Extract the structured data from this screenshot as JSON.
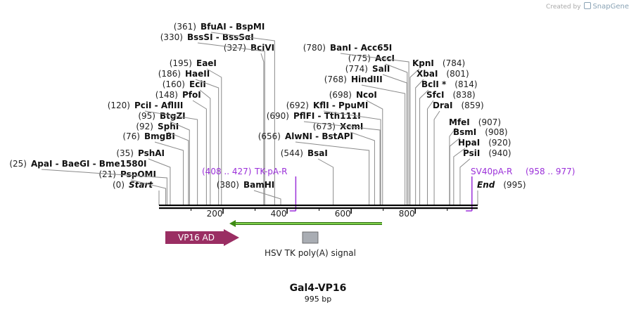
{
  "credit": {
    "prefix": "Created by",
    "brand": "SnapGene"
  },
  "plasmid": {
    "name": "Gal4-VP16",
    "length": "995 bp",
    "total_bp": 995
  },
  "ruler": {
    "ticks": [
      200,
      400,
      600,
      800
    ]
  },
  "sites": [
    {
      "pos": 0,
      "num": "(0)",
      "name": "Start",
      "style": "italic"
    },
    {
      "pos": 21,
      "num": "(21)",
      "name": "PspOMI"
    },
    {
      "pos": 25,
      "num": "(25)",
      "name": "ApaI  -  BaeGI  -  Bme1580I"
    },
    {
      "pos": 35,
      "num": "(35)",
      "name": "PshAI"
    },
    {
      "pos": 76,
      "num": "(76)",
      "name": "BmgBI"
    },
    {
      "pos": 92,
      "num": "(92)",
      "name": "SphI"
    },
    {
      "pos": 95,
      "num": "(95)",
      "name": "BtgZI"
    },
    {
      "pos": 120,
      "num": "(120)",
      "name": "PciI  -  AflIII"
    },
    {
      "pos": 148,
      "num": "(148)",
      "name": "PfoI"
    },
    {
      "pos": 160,
      "num": "(160)",
      "name": "EciI"
    },
    {
      "pos": 186,
      "num": "(186)",
      "name": "HaeII"
    },
    {
      "pos": 195,
      "num": "(195)",
      "name": "EaeI"
    },
    {
      "pos": 327,
      "num": "(327)",
      "name": "BciVI"
    },
    {
      "pos": 330,
      "num": "(330)",
      "name": "BssSI  -  BssSαI"
    },
    {
      "pos": 361,
      "num": "(361)",
      "name": "BfuAI  -  BspMI"
    },
    {
      "pos": 380,
      "num": "(380)",
      "name": "BamHI"
    },
    {
      "pos": 544,
      "num": "(544)",
      "name": "BsaI"
    },
    {
      "pos": 656,
      "num": "(656)",
      "name": "AlwNI  -  BstAPI"
    },
    {
      "pos": 673,
      "num": "(673)",
      "name": "XcmI"
    },
    {
      "pos": 690,
      "num": "(690)",
      "name": "PflFI  -  Tth111I"
    },
    {
      "pos": 692,
      "num": "(692)",
      "name": "KflI  -  PpuMI"
    },
    {
      "pos": 698,
      "num": "(698)",
      "name": "NcoI"
    },
    {
      "pos": 768,
      "num": "(768)",
      "name": "HindIII"
    },
    {
      "pos": 774,
      "num": "(774)",
      "name": "SalI"
    },
    {
      "pos": 775,
      "num": "(775)",
      "name": "AccI"
    },
    {
      "pos": 780,
      "num": "(780)",
      "name": "BanI  -  Acc65I"
    },
    {
      "pos": 784,
      "num": "(784)",
      "name": "KpnI"
    },
    {
      "pos": 801,
      "num": "(801)",
      "name": "XbaI"
    },
    {
      "pos": 814,
      "num": "(814)",
      "name": "BclI *"
    },
    {
      "pos": 838,
      "num": "(838)",
      "name": "SfcI"
    },
    {
      "pos": 859,
      "num": "(859)",
      "name": "DraI"
    },
    {
      "pos": 907,
      "num": "(907)",
      "name": "MfeI"
    },
    {
      "pos": 908,
      "num": "(908)",
      "name": "BsmI"
    },
    {
      "pos": 920,
      "num": "(920)",
      "name": "HpaI"
    },
    {
      "pos": 940,
      "num": "(940)",
      "name": "PsiI"
    },
    {
      "pos": 995,
      "num": "(995)",
      "name": "End",
      "style": "italic"
    }
  ],
  "primers": [
    {
      "name": "TK-pA-R",
      "range": "(408 .. 427)",
      "start": 408,
      "end": 427,
      "color": "#9b30d9"
    },
    {
      "name": "SV40pA-R",
      "range": "(958 .. 977)",
      "start": 958,
      "end": 977,
      "color": "#9b30d9"
    }
  ],
  "features": [
    {
      "name": "VP16 AD",
      "type": "arrow-right",
      "start": 0,
      "end": 228,
      "color": "#9a2e63"
    },
    {
      "name": "HSV TK poly(A) signal",
      "type": "box",
      "start": 451,
      "end": 499,
      "color": "#a9adb3"
    },
    {
      "name": "",
      "type": "line-arrow-left",
      "start": 228,
      "end": 703,
      "color": "#4a9a17"
    }
  ]
}
